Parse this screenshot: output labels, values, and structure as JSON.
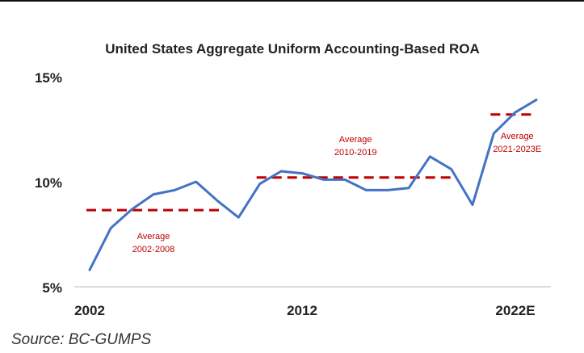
{
  "chart_data": {
    "type": "line",
    "title": "United States Aggregate Uniform Accounting-Based ROA",
    "xlabel": "",
    "ylabel": "",
    "x_ticks": [
      "2002",
      "2012",
      "2022E"
    ],
    "y_ticks": [
      "15%",
      "10%",
      "5%"
    ],
    "ylim": [
      5,
      15
    ],
    "xlim": [
      2002,
      2023
    ],
    "grid": false,
    "legend": "none",
    "series": [
      {
        "color": "#4472C4",
        "x": [
          2002,
          2003,
          2004,
          2005,
          2006,
          2007,
          2008,
          2009,
          2010,
          2011,
          2012,
          2013,
          2014,
          2015,
          2016,
          2017,
          2018,
          2019,
          2020,
          2021,
          2022,
          2023
        ],
        "y": [
          5.8,
          7.8,
          8.7,
          9.4,
          9.6,
          10.0,
          9.1,
          8.3,
          9.9,
          10.5,
          10.4,
          10.1,
          10.1,
          9.6,
          9.6,
          9.7,
          11.2,
          10.6,
          8.9,
          12.3,
          13.3,
          13.9
        ]
      }
    ],
    "averages": [
      {
        "label": "Average",
        "period": "2002-2008",
        "value": 8.65,
        "x_start": 2002,
        "x_end": 2008,
        "color": "#C00000"
      },
      {
        "label": "Average",
        "period": "2010-2019",
        "value": 10.2,
        "x_start": 2010,
        "x_end": 2019,
        "color": "#C00000"
      },
      {
        "label": "Average",
        "period": "2021-2023E",
        "value": 13.2,
        "x_start": 2021,
        "x_end": 2023,
        "color": "#C00000"
      }
    ]
  },
  "source": "Source: BC-GUMPS"
}
